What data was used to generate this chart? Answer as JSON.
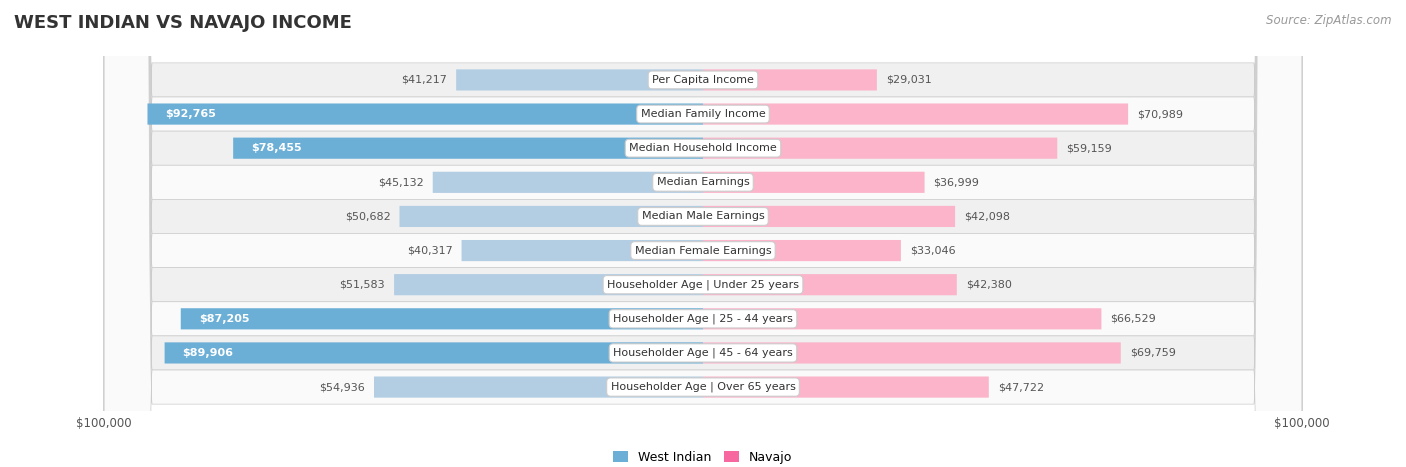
{
  "title": "WEST INDIAN VS NAVAJO INCOME",
  "source": "Source: ZipAtlas.com",
  "categories": [
    "Per Capita Income",
    "Median Family Income",
    "Median Household Income",
    "Median Earnings",
    "Median Male Earnings",
    "Median Female Earnings",
    "Householder Age | Under 25 years",
    "Householder Age | 25 - 44 years",
    "Householder Age | 45 - 64 years",
    "Householder Age | Over 65 years"
  ],
  "west_indian": [
    41217,
    92765,
    78455,
    45132,
    50682,
    40317,
    51583,
    87205,
    89906,
    54936
  ],
  "navajo": [
    29031,
    70989,
    59159,
    36999,
    42098,
    33046,
    42380,
    66529,
    69759,
    47722
  ],
  "max_value": 100000,
  "west_indian_color_full": "#6baed6",
  "west_indian_color_light": "#b3cde3",
  "navajo_color_full": "#f768a1",
  "navajo_color_light": "#fbb4c9",
  "threshold_full": 75000,
  "label_color_inside": "#ffffff",
  "label_color_outside": "#555555",
  "bar_height": 0.62,
  "bg_row_odd": "#f0f0f0",
  "bg_row_even": "#fafafa",
  "legend_label_west": "West Indian",
  "legend_label_navajo": "Navajo",
  "xlabel_left": "$100,000",
  "xlabel_right": "$100,000",
  "title_fontsize": 13,
  "source_fontsize": 8.5,
  "label_fontsize": 8,
  "cat_fontsize": 8
}
